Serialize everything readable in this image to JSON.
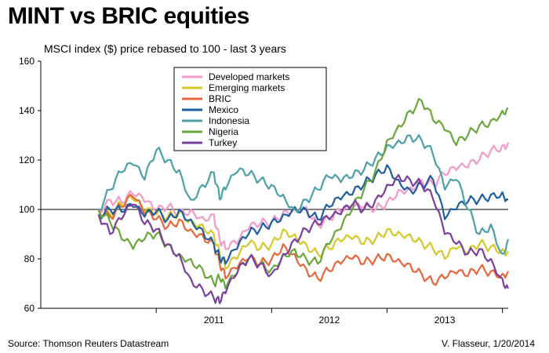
{
  "header": {
    "title": "MINT vs BRIC equities",
    "subtitle": "MSCI index ($) price rebased to 100 - last 3 years"
  },
  "footer": {
    "source": "Source: Thomson Reuters Datastream",
    "credit": "V. Flasseur, 1/20/2014"
  },
  "chart_data": {
    "type": "line",
    "title": "MINT vs BRIC equities",
    "subtitle": "MSCI index ($) price rebased to 100 - last 3 years",
    "ylim": [
      60,
      160
    ],
    "y_ticks": [
      60,
      80,
      100,
      120,
      140,
      160
    ],
    "x_range": [
      2010.0,
      2014.05
    ],
    "x_tick_labels": [
      {
        "label": "2011",
        "x": 2011.5
      },
      {
        "label": "2012",
        "x": 2012.5
      },
      {
        "label": "2013",
        "x": 2013.5
      }
    ],
    "x_year_boundaries": [
      2011.0,
      2012.0,
      2013.0,
      2014.0
    ],
    "reference_line": 100,
    "grid": false,
    "legend_position": "top-center",
    "series": [
      {
        "name": "Developed markets",
        "color": "#f29bc8",
        "points": [
          [
            2010.5,
            100
          ],
          [
            2010.6,
            104
          ],
          [
            2010.7,
            103
          ],
          [
            2010.8,
            106
          ],
          [
            2010.9,
            103
          ],
          [
            2011.0,
            99
          ],
          [
            2011.1,
            101
          ],
          [
            2011.2,
            99
          ],
          [
            2011.3,
            100
          ],
          [
            2011.4,
            97
          ],
          [
            2011.5,
            98
          ],
          [
            2011.55,
            88
          ],
          [
            2011.6,
            84
          ],
          [
            2011.7,
            86
          ],
          [
            2011.8,
            92
          ],
          [
            2011.9,
            94
          ],
          [
            2012.0,
            95
          ],
          [
            2012.1,
            99
          ],
          [
            2012.2,
            101
          ],
          [
            2012.3,
            101
          ],
          [
            2012.4,
            94
          ],
          [
            2012.5,
            96
          ],
          [
            2012.6,
            99
          ],
          [
            2012.7,
            100
          ],
          [
            2012.8,
            101
          ],
          [
            2012.9,
            100
          ],
          [
            2013.0,
            103
          ],
          [
            2013.1,
            108
          ],
          [
            2013.2,
            109
          ],
          [
            2013.3,
            112
          ],
          [
            2013.4,
            110
          ],
          [
            2013.5,
            114
          ],
          [
            2013.6,
            116
          ],
          [
            2013.7,
            117
          ],
          [
            2013.8,
            120
          ],
          [
            2013.9,
            124
          ],
          [
            2014.0,
            126
          ],
          [
            2014.05,
            127
          ]
        ]
      },
      {
        "name": "Emerging markets",
        "color": "#d4c82a",
        "points": [
          [
            2010.5,
            100
          ],
          [
            2010.6,
            98
          ],
          [
            2010.7,
            102
          ],
          [
            2010.8,
            104
          ],
          [
            2010.9,
            99
          ],
          [
            2011.0,
            98
          ],
          [
            2011.1,
            97
          ],
          [
            2011.2,
            99
          ],
          [
            2011.3,
            96
          ],
          [
            2011.4,
            94
          ],
          [
            2011.5,
            90
          ],
          [
            2011.55,
            82
          ],
          [
            2011.6,
            76
          ],
          [
            2011.7,
            80
          ],
          [
            2011.8,
            86
          ],
          [
            2011.9,
            84
          ],
          [
            2012.0,
            86
          ],
          [
            2012.1,
            92
          ],
          [
            2012.2,
            90
          ],
          [
            2012.3,
            86
          ],
          [
            2012.4,
            82
          ],
          [
            2012.5,
            84
          ],
          [
            2012.6,
            87
          ],
          [
            2012.7,
            88
          ],
          [
            2012.8,
            86
          ],
          [
            2012.9,
            88
          ],
          [
            2013.0,
            92
          ],
          [
            2013.1,
            91
          ],
          [
            2013.2,
            90
          ],
          [
            2013.3,
            87
          ],
          [
            2013.4,
            84
          ],
          [
            2013.5,
            80
          ],
          [
            2013.6,
            84
          ],
          [
            2013.7,
            82
          ],
          [
            2013.8,
            86
          ],
          [
            2013.9,
            85
          ],
          [
            2014.0,
            84
          ],
          [
            2014.05,
            83
          ]
        ]
      },
      {
        "name": "BRIC",
        "color": "#e5673a",
        "points": [
          [
            2010.5,
            100
          ],
          [
            2010.6,
            97
          ],
          [
            2010.7,
            101
          ],
          [
            2010.8,
            105
          ],
          [
            2010.9,
            98
          ],
          [
            2011.0,
            96
          ],
          [
            2011.1,
            93
          ],
          [
            2011.2,
            96
          ],
          [
            2011.3,
            92
          ],
          [
            2011.4,
            90
          ],
          [
            2011.5,
            86
          ],
          [
            2011.55,
            78
          ],
          [
            2011.6,
            72
          ],
          [
            2011.7,
            76
          ],
          [
            2011.8,
            80
          ],
          [
            2011.9,
            78
          ],
          [
            2012.0,
            80
          ],
          [
            2012.1,
            86
          ],
          [
            2012.2,
            82
          ],
          [
            2012.3,
            76
          ],
          [
            2012.4,
            72
          ],
          [
            2012.5,
            75
          ],
          [
            2012.6,
            78
          ],
          [
            2012.7,
            80
          ],
          [
            2012.8,
            78
          ],
          [
            2012.9,
            80
          ],
          [
            2013.0,
            82
          ],
          [
            2013.1,
            80
          ],
          [
            2013.2,
            78
          ],
          [
            2013.3,
            74
          ],
          [
            2013.4,
            70
          ],
          [
            2013.5,
            72
          ],
          [
            2013.6,
            74
          ],
          [
            2013.7,
            73
          ],
          [
            2013.8,
            76
          ],
          [
            2013.9,
            75
          ],
          [
            2014.0,
            74
          ],
          [
            2014.05,
            75
          ]
        ]
      },
      {
        "name": "Mexico",
        "color": "#1f5fa0",
        "points": [
          [
            2010.5,
            98
          ],
          [
            2010.6,
            100
          ],
          [
            2010.7,
            99
          ],
          [
            2010.8,
            101
          ],
          [
            2010.9,
            97
          ],
          [
            2011.0,
            99
          ],
          [
            2011.1,
            96
          ],
          [
            2011.2,
            100
          ],
          [
            2011.3,
            96
          ],
          [
            2011.4,
            92
          ],
          [
            2011.5,
            86
          ],
          [
            2011.55,
            80
          ],
          [
            2011.6,
            78
          ],
          [
            2011.7,
            84
          ],
          [
            2011.8,
            90
          ],
          [
            2011.9,
            92
          ],
          [
            2012.0,
            95
          ],
          [
            2012.1,
            98
          ],
          [
            2012.2,
            101
          ],
          [
            2012.3,
            100
          ],
          [
            2012.4,
            96
          ],
          [
            2012.5,
            101
          ],
          [
            2012.6,
            104
          ],
          [
            2012.7,
            106
          ],
          [
            2012.8,
            110
          ],
          [
            2012.9,
            114
          ],
          [
            2013.0,
            118
          ],
          [
            2013.1,
            112
          ],
          [
            2013.2,
            108
          ],
          [
            2013.3,
            110
          ],
          [
            2013.4,
            112
          ],
          [
            2013.5,
            96
          ],
          [
            2013.6,
            100
          ],
          [
            2013.7,
            103
          ],
          [
            2013.8,
            104
          ],
          [
            2013.9,
            106
          ],
          [
            2014.0,
            107
          ],
          [
            2014.05,
            104
          ]
        ]
      },
      {
        "name": "Indonesia",
        "color": "#4ca1a8",
        "points": [
          [
            2010.5,
            100
          ],
          [
            2010.6,
            108
          ],
          [
            2010.7,
            115
          ],
          [
            2010.8,
            118
          ],
          [
            2010.9,
            112
          ],
          [
            2011.0,
            124
          ],
          [
            2011.1,
            120
          ],
          [
            2011.2,
            116
          ],
          [
            2011.3,
            104
          ],
          [
            2011.4,
            110
          ],
          [
            2011.5,
            115
          ],
          [
            2011.55,
            104
          ],
          [
            2011.6,
            108
          ],
          [
            2011.7,
            115
          ],
          [
            2011.8,
            114
          ],
          [
            2011.9,
            112
          ],
          [
            2012.0,
            110
          ],
          [
            2012.1,
            106
          ],
          [
            2012.2,
            100
          ],
          [
            2012.3,
            104
          ],
          [
            2012.4,
            108
          ],
          [
            2012.5,
            113
          ],
          [
            2012.6,
            111
          ],
          [
            2012.7,
            113
          ],
          [
            2012.8,
            116
          ],
          [
            2012.9,
            121
          ],
          [
            2013.0,
            126
          ],
          [
            2013.1,
            128
          ],
          [
            2013.2,
            130
          ],
          [
            2013.3,
            128
          ],
          [
            2013.4,
            122
          ],
          [
            2013.5,
            108
          ],
          [
            2013.6,
            112
          ],
          [
            2013.7,
            100
          ],
          [
            2013.8,
            90
          ],
          [
            2013.9,
            94
          ],
          [
            2014.0,
            82
          ],
          [
            2014.05,
            88
          ]
        ]
      },
      {
        "name": "Nigeria",
        "color": "#6aa73b",
        "points": [
          [
            2010.5,
            100
          ],
          [
            2010.6,
            95
          ],
          [
            2010.7,
            88
          ],
          [
            2010.8,
            84
          ],
          [
            2010.9,
            88
          ],
          [
            2011.0,
            90
          ],
          [
            2011.1,
            86
          ],
          [
            2011.2,
            82
          ],
          [
            2011.3,
            80
          ],
          [
            2011.4,
            76
          ],
          [
            2011.5,
            70
          ],
          [
            2011.55,
            72
          ],
          [
            2011.6,
            68
          ],
          [
            2011.7,
            74
          ],
          [
            2011.8,
            80
          ],
          [
            2011.9,
            78
          ],
          [
            2012.0,
            76
          ],
          [
            2012.1,
            82
          ],
          [
            2012.2,
            84
          ],
          [
            2012.3,
            80
          ],
          [
            2012.4,
            78
          ],
          [
            2012.5,
            86
          ],
          [
            2012.6,
            92
          ],
          [
            2012.7,
            100
          ],
          [
            2012.8,
            108
          ],
          [
            2012.9,
            116
          ],
          [
            2013.0,
            128
          ],
          [
            2013.1,
            134
          ],
          [
            2013.2,
            140
          ],
          [
            2013.3,
            144
          ],
          [
            2013.4,
            136
          ],
          [
            2013.5,
            132
          ],
          [
            2013.6,
            126
          ],
          [
            2013.7,
            130
          ],
          [
            2013.8,
            134
          ],
          [
            2013.9,
            136
          ],
          [
            2014.0,
            140
          ],
          [
            2014.05,
            141
          ]
        ]
      },
      {
        "name": "Turkey",
        "color": "#7b3f9c",
        "points": [
          [
            2010.5,
            98
          ],
          [
            2010.6,
            90
          ],
          [
            2010.7,
            96
          ],
          [
            2010.8,
            102
          ],
          [
            2010.9,
            94
          ],
          [
            2011.0,
            92
          ],
          [
            2011.1,
            86
          ],
          [
            2011.2,
            82
          ],
          [
            2011.3,
            72
          ],
          [
            2011.4,
            68
          ],
          [
            2011.5,
            64
          ],
          [
            2011.55,
            62
          ],
          [
            2011.6,
            66
          ],
          [
            2011.7,
            74
          ],
          [
            2011.8,
            80
          ],
          [
            2011.9,
            78
          ],
          [
            2012.0,
            74
          ],
          [
            2012.1,
            82
          ],
          [
            2012.2,
            88
          ],
          [
            2012.3,
            92
          ],
          [
            2012.4,
            94
          ],
          [
            2012.5,
            96
          ],
          [
            2012.6,
            98
          ],
          [
            2012.7,
            102
          ],
          [
            2012.8,
            100
          ],
          [
            2012.9,
            104
          ],
          [
            2013.0,
            110
          ],
          [
            2013.1,
            114
          ],
          [
            2013.2,
            112
          ],
          [
            2013.3,
            110
          ],
          [
            2013.4,
            104
          ],
          [
            2013.5,
            90
          ],
          [
            2013.6,
            86
          ],
          [
            2013.7,
            82
          ],
          [
            2013.8,
            84
          ],
          [
            2013.9,
            80
          ],
          [
            2014.0,
            72
          ],
          [
            2014.05,
            68
          ]
        ]
      }
    ]
  }
}
